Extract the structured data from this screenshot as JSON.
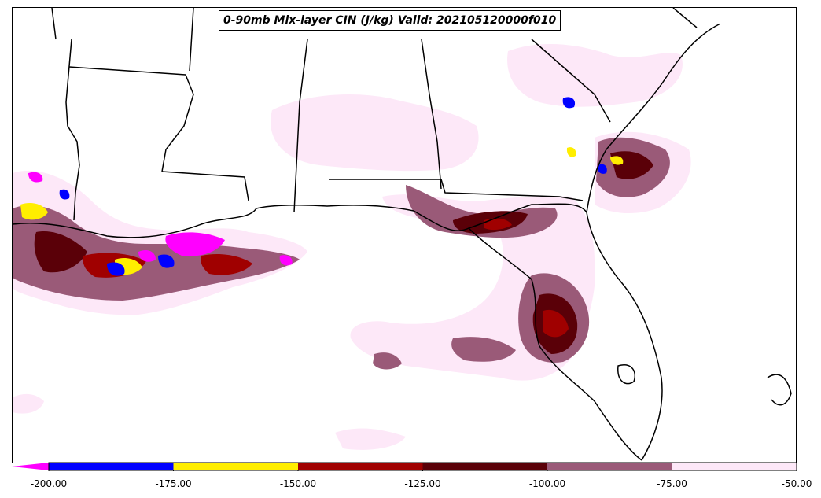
{
  "title": "0-90mb Mix-layer CIN (J/kg) Valid: 202105120000f010",
  "colorbar": {
    "ticks": [
      "-200.00",
      "-175.00",
      "-150.00",
      "-125.00",
      "-100.00",
      "-75.00",
      "-50.00"
    ],
    "bins": [
      {
        "from": -200,
        "to": -175,
        "color": "#0000ff"
      },
      {
        "from": -175,
        "to": -150,
        "color": "#ffee00"
      },
      {
        "from": -150,
        "to": -125,
        "color": "#a00000"
      },
      {
        "from": -125,
        "to": -100,
        "color": "#5a0008"
      },
      {
        "from": -100,
        "to": -75,
        "color": "#9a5a78"
      },
      {
        "from": -75,
        "to": -50,
        "color": "#fde8f8"
      }
    ],
    "under_color": "#ff00ff"
  },
  "colors": {
    "border": "#000000",
    "background": "#ffffff"
  }
}
